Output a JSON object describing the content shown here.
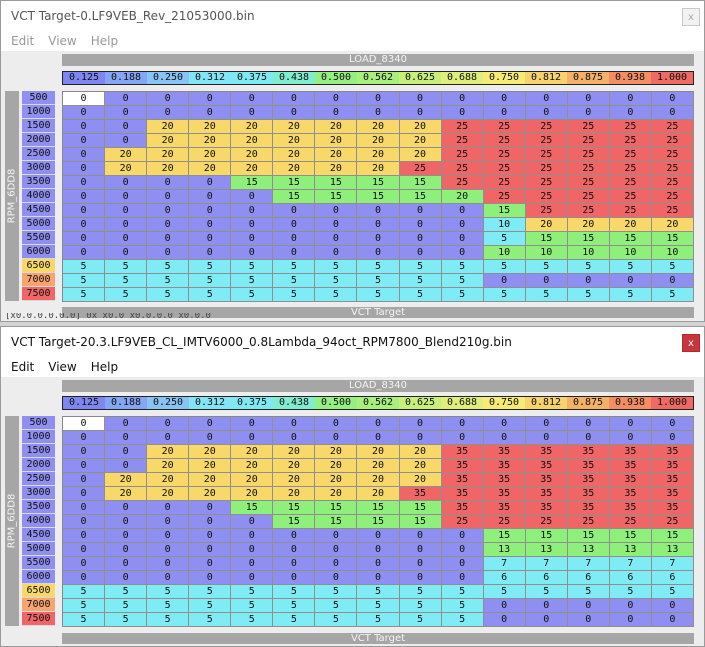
{
  "colors": {
    "b": "#8f8ff2",
    "c": "#7fecf5",
    "y": "#f7d869",
    "r": "#f06666",
    "g": "#8ef07a",
    "w": "#ffffff"
  },
  "x_colors": [
    "#7f86f2",
    "#84a6f4",
    "#89c4f6",
    "#82e6f7",
    "#7de9f2",
    "#80ecd0",
    "#96ef82",
    "#a9ef7c",
    "#c7ef7a",
    "#e0ef7b",
    "#f6ec74",
    "#f6d36c",
    "#f4b266",
    "#f38e63",
    "#ef6a63"
  ],
  "y_colors": [
    "#8f8ff2",
    "#8f8ff2",
    "#8f8ff2",
    "#8f8ff2",
    "#8f8ff2",
    "#8f8ff2",
    "#8f8ff2",
    "#8f8ff2",
    "#8f8ff2",
    "#8f8ff2",
    "#8f8ff2",
    "#8f8ff2",
    "#f7d869",
    "#f7a46f",
    "#f06666"
  ],
  "windows": [
    {
      "title": "VCT Target-0.LF9VEB_Rev_21053000.bin",
      "menu": [
        "Edit",
        "View",
        "Help"
      ],
      "close": "x",
      "load_label": "LOAD_8340",
      "rpm_label": "RPM_6DD8",
      "vct_label": "VCT Target",
      "x_axis": [
        "0.125",
        "0.188",
        "0.250",
        "0.312",
        "0.375",
        "0.438",
        "0.500",
        "0.562",
        "0.625",
        "0.688",
        "0.750",
        "0.812",
        "0.875",
        "0.938",
        "1.000"
      ],
      "y_axis": [
        "500",
        "1000",
        "1500",
        "2000",
        "2500",
        "3000",
        "3500",
        "4000",
        "4500",
        "5000",
        "5500",
        "6000",
        "6500",
        "7000",
        "7500"
      ],
      "values": [
        [
          0,
          0,
          0,
          0,
          0,
          0,
          0,
          0,
          0,
          0,
          0,
          0,
          0,
          0,
          0
        ],
        [
          0,
          0,
          0,
          0,
          0,
          0,
          0,
          0,
          0,
          0,
          0,
          0,
          0,
          0,
          0
        ],
        [
          0,
          0,
          20,
          20,
          20,
          20,
          20,
          20,
          20,
          25,
          25,
          25,
          25,
          25,
          25
        ],
        [
          0,
          0,
          20,
          20,
          20,
          20,
          20,
          20,
          20,
          25,
          25,
          25,
          25,
          25,
          25
        ],
        [
          0,
          20,
          20,
          20,
          20,
          20,
          20,
          20,
          20,
          25,
          25,
          25,
          25,
          25,
          25
        ],
        [
          0,
          20,
          20,
          20,
          20,
          20,
          20,
          20,
          25,
          25,
          25,
          25,
          25,
          25,
          25
        ],
        [
          0,
          0,
          0,
          0,
          15,
          15,
          15,
          15,
          15,
          25,
          25,
          25,
          25,
          25,
          25
        ],
        [
          0,
          0,
          0,
          0,
          0,
          15,
          15,
          15,
          15,
          20,
          25,
          25,
          25,
          25,
          25
        ],
        [
          0,
          0,
          0,
          0,
          0,
          0,
          0,
          0,
          0,
          0,
          15,
          25,
          25,
          25,
          25
        ],
        [
          0,
          0,
          0,
          0,
          0,
          0,
          0,
          0,
          0,
          0,
          10,
          20,
          20,
          20,
          20
        ],
        [
          0,
          0,
          0,
          0,
          0,
          0,
          0,
          0,
          0,
          0,
          5,
          15,
          15,
          15,
          15
        ],
        [
          0,
          0,
          0,
          0,
          0,
          0,
          0,
          0,
          0,
          0,
          10,
          10,
          10,
          10,
          10
        ],
        [
          5,
          5,
          5,
          5,
          5,
          5,
          5,
          5,
          5,
          5,
          5,
          5,
          5,
          5,
          5
        ],
        [
          5,
          5,
          5,
          5,
          5,
          5,
          5,
          5,
          5,
          5,
          0,
          0,
          0,
          0,
          0
        ],
        [
          5,
          5,
          5,
          5,
          5,
          5,
          5,
          5,
          5,
          5,
          5,
          5,
          5,
          5,
          5
        ]
      ],
      "cell_colors": [
        "wbbbbbbbbbbbbbb",
        "bbbbbbbbbbbbbbb",
        "bbyyyyyyyrrrrrr",
        "bbyyyyyyyrrrrrr",
        "byyyyyyyyrrrrrr",
        "byyyyyyyrrrrrrr",
        "bbbbgggggrrrrrr",
        "bbbbbgggggrrrrr",
        "bbbbbbbbbbgrrrr",
        "bbbbbbbbbbcyyyy",
        "bbbbbbbbbbcgggg",
        "bbbbbbbbbbggggg",
        "ccccccccccccccc",
        "ccccccccccbbbbb",
        "ccccccccccccccc"
      ],
      "bleed_text": "[x0.0.0.0.0.0] 0x x0.0 x0.0.0.0 x0.0.0"
    },
    {
      "title": "VCT Target-20.3.LF9VEB_CL_IMTV6000_0.8Lambda_94oct_RPM7800_Blend210g.bin",
      "menu": [
        "Edit",
        "View",
        "Help"
      ],
      "close": "x",
      "load_label": "LOAD_8340",
      "rpm_label": "RPM_6DD8",
      "vct_label": "VCT Target",
      "x_axis": [
        "0.125",
        "0.188",
        "0.250",
        "0.312",
        "0.375",
        "0.438",
        "0.500",
        "0.562",
        "0.625",
        "0.688",
        "0.750",
        "0.812",
        "0.875",
        "0.938",
        "1.000"
      ],
      "y_axis": [
        "500",
        "1000",
        "1500",
        "2000",
        "2500",
        "3000",
        "3500",
        "4000",
        "4500",
        "5000",
        "5500",
        "6000",
        "6500",
        "7000",
        "7500"
      ],
      "values": [
        [
          0,
          0,
          0,
          0,
          0,
          0,
          0,
          0,
          0,
          0,
          0,
          0,
          0,
          0,
          0
        ],
        [
          0,
          0,
          0,
          0,
          0,
          0,
          0,
          0,
          0,
          0,
          0,
          0,
          0,
          0,
          0
        ],
        [
          0,
          0,
          20,
          20,
          20,
          20,
          20,
          20,
          20,
          35,
          35,
          35,
          35,
          35,
          35
        ],
        [
          0,
          0,
          20,
          20,
          20,
          20,
          20,
          20,
          20,
          35,
          35,
          35,
          35,
          35,
          35
        ],
        [
          0,
          20,
          20,
          20,
          20,
          20,
          20,
          20,
          20,
          35,
          35,
          35,
          35,
          35,
          35
        ],
        [
          0,
          20,
          20,
          20,
          20,
          20,
          20,
          20,
          35,
          35,
          35,
          35,
          35,
          35,
          35
        ],
        [
          0,
          0,
          0,
          0,
          15,
          15,
          15,
          15,
          15,
          35,
          35,
          35,
          35,
          35,
          35
        ],
        [
          0,
          0,
          0,
          0,
          0,
          15,
          15,
          15,
          15,
          25,
          25,
          25,
          25,
          25,
          25
        ],
        [
          0,
          0,
          0,
          0,
          0,
          0,
          0,
          0,
          0,
          0,
          15,
          15,
          15,
          15,
          15
        ],
        [
          0,
          0,
          0,
          0,
          0,
          0,
          0,
          0,
          0,
          0,
          13,
          13,
          13,
          13,
          13
        ],
        [
          0,
          0,
          0,
          0,
          0,
          0,
          0,
          0,
          0,
          0,
          7,
          7,
          7,
          7,
          7
        ],
        [
          0,
          0,
          0,
          0,
          0,
          0,
          0,
          0,
          0,
          0,
          6,
          6,
          6,
          6,
          6
        ],
        [
          5,
          5,
          5,
          5,
          5,
          5,
          5,
          5,
          5,
          5,
          5,
          5,
          5,
          5,
          5
        ],
        [
          5,
          5,
          5,
          5,
          5,
          5,
          5,
          5,
          5,
          5,
          0,
          0,
          0,
          0,
          0
        ],
        [
          5,
          5,
          5,
          5,
          5,
          5,
          5,
          5,
          5,
          5,
          0,
          0,
          0,
          0,
          0
        ]
      ],
      "cell_colors": [
        "wbbbbbbbbbbbbbb",
        "bbbbbbbbbbbbbbb",
        "bbyyyyyyyrrrrrr",
        "bbyyyyyyyrrrrrr",
        "byyyyyyyyrrrrrr",
        "byyyyyyyrrrrrrr",
        "bbbbgggggrrrrrr",
        "bbbbbggggrrrrrr",
        "bbbbbbbbbbggggg",
        "bbbbbbbbbbggggg",
        "bbbbbbbbbbccccc",
        "bbbbbbbbbbccccc",
        "ccccccccccccccc",
        "ccccccccccbbbbb",
        "ccccccccccbbbbb"
      ]
    }
  ]
}
